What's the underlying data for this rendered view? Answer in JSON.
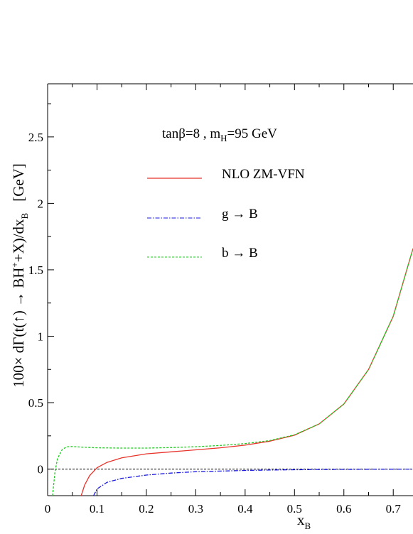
{
  "chart_data": {
    "type": "line",
    "title": "",
    "xlabel": "x",
    "xlabel_sub": "B",
    "ylabel": {
      "main_pre": "100× dΓ(t(",
      "hat": "↑",
      "main_mid": ") → BH",
      "sup": "+",
      "main_post": "+X)/dx",
      "sub": "B",
      "unit": "[GeV]"
    },
    "annotation": {
      "pre": "tanβ=8 , m",
      "sub": "H",
      "post": "=95 GeV"
    },
    "xlim": [
      0,
      0.74
    ],
    "ylim": [
      -0.2,
      2.9
    ],
    "x_ticks": [
      0,
      0.1,
      0.2,
      0.3,
      0.4,
      0.5,
      0.6,
      0.7
    ],
    "x_tick_labels": [
      "0",
      "0.1",
      "0.2",
      "0.3",
      "0.4",
      "0.5",
      "0.6",
      "0.7"
    ],
    "y_ticks": [
      0,
      0.5,
      1,
      1.5,
      2,
      2.5
    ],
    "y_tick_labels": [
      "0",
      "0.5",
      "1",
      "1.5",
      "2",
      "2.5"
    ],
    "grid": false,
    "zero_line": true,
    "legend_position": "upper-left",
    "series": [
      {
        "name": "NLO  ZM-VFN",
        "legend_label": "NLO  ZM-VFN",
        "color": "#e8332a",
        "dash": "solid",
        "x": [
          0.068,
          0.075,
          0.085,
          0.1,
          0.12,
          0.15,
          0.2,
          0.25,
          0.3,
          0.35,
          0.4,
          0.45,
          0.5,
          0.55,
          0.6,
          0.65,
          0.7,
          0.74
        ],
        "y": [
          -0.2,
          -0.12,
          -0.05,
          0.01,
          0.05,
          0.085,
          0.115,
          0.13,
          0.145,
          0.16,
          0.18,
          0.21,
          0.255,
          0.34,
          0.49,
          0.75,
          1.15,
          1.66
        ]
      },
      {
        "name": "g → B",
        "legend_label": "g → B",
        "color": "#1a1ae0",
        "dash": "dashdot",
        "x": [
          0.093,
          0.1,
          0.12,
          0.15,
          0.2,
          0.25,
          0.3,
          0.35,
          0.4,
          0.45,
          0.5,
          0.55,
          0.6,
          0.65,
          0.7,
          0.74
        ],
        "y": [
          -0.2,
          -0.15,
          -0.1,
          -0.07,
          -0.045,
          -0.03,
          -0.02,
          -0.015,
          -0.01,
          -0.007,
          -0.005,
          -0.003,
          -0.002,
          -0.001,
          -0.0005,
          0
        ]
      },
      {
        "name": "b → B",
        "legend_label": "b → B",
        "color": "#22cc22",
        "dash": "dashed",
        "x": [
          0.01,
          0.015,
          0.02,
          0.03,
          0.04,
          0.05,
          0.07,
          0.1,
          0.15,
          0.2,
          0.25,
          0.3,
          0.35,
          0.4,
          0.45,
          0.5,
          0.55,
          0.6,
          0.65,
          0.7,
          0.74
        ],
        "y": [
          -0.2,
          -0.02,
          0.08,
          0.15,
          0.168,
          0.17,
          0.165,
          0.16,
          0.158,
          0.158,
          0.162,
          0.168,
          0.178,
          0.192,
          0.215,
          0.258,
          0.34,
          0.49,
          0.75,
          1.15,
          1.66
        ]
      }
    ]
  }
}
